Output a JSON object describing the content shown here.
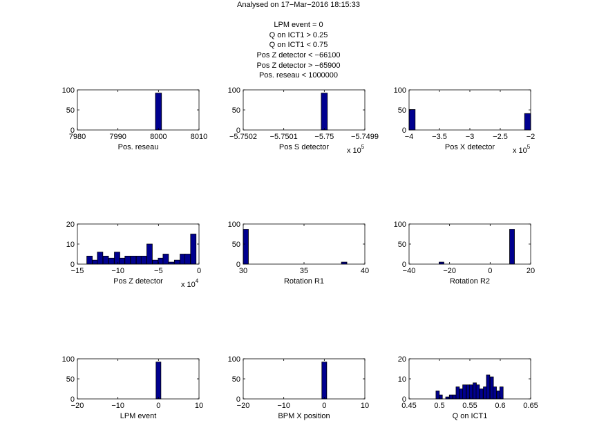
{
  "figure": {
    "title_line": "Analysed on 17−Mar−2016 18:15:33",
    "cut_lines": [
      "LPM event = 0",
      "Q on ICT1 > 0.25",
      "Q on ICT1 < 0.75",
      "Pos Z detector < −66100",
      "Pos Z detector > −65900",
      "Pos. reseau < 1000000"
    ]
  },
  "colors": {
    "bar_fill": "#00008f",
    "bar_edge": "#000000",
    "axes": "#000000"
  },
  "chart_data": [
    {
      "type": "bar",
      "xlabel": "Pos. reseau",
      "xlim": [
        7980,
        8010
      ],
      "xticks": [
        "7980",
        "7990",
        "8000",
        "8010"
      ],
      "ylim": [
        0,
        100
      ],
      "yticks": [
        "0",
        "50",
        "100"
      ],
      "bin_width": 1.5,
      "bars": [
        {
          "x": 8000,
          "y": 92
        }
      ]
    },
    {
      "type": "bar",
      "xlabel": "Pos S detector",
      "xlim": [
        -5.7502,
        -5.7499
      ],
      "xticks": [
        "−5.7502",
        "−5.7501",
        "−5.75",
        "−5.7499"
      ],
      "exponent": "5",
      "ylim": [
        0,
        100
      ],
      "yticks": [
        "0",
        "50",
        "100"
      ],
      "bin_width": 1.5e-05,
      "bars": [
        {
          "x": -5.75,
          "y": 92
        }
      ]
    },
    {
      "type": "bar",
      "xlabel": "Pos X detector",
      "xlim": [
        -4,
        -2
      ],
      "xticks": [
        "−4",
        "−3.5",
        "−3",
        "−2.5",
        "−2"
      ],
      "exponent": "5",
      "ylim": [
        0,
        100
      ],
      "yticks": [
        "0",
        "50",
        "100"
      ],
      "bin_width": 0.1,
      "bars": [
        {
          "x": -3.95,
          "y": 51
        },
        {
          "x": -2.05,
          "y": 41
        }
      ]
    },
    {
      "type": "bar",
      "xlabel": "Pos Z detector",
      "xlim": [
        -15,
        0
      ],
      "xticks": [
        "−15",
        "−10",
        "−5",
        "0"
      ],
      "exponent": "4",
      "ylim": [
        0,
        20
      ],
      "yticks": [
        "0",
        "10",
        "20"
      ],
      "bin_width": 0.675,
      "bars": [
        {
          "x": -13.5,
          "y": 4
        },
        {
          "x": -12.8,
          "y": 2
        },
        {
          "x": -12.2,
          "y": 6
        },
        {
          "x": -11.5,
          "y": 4
        },
        {
          "x": -10.8,
          "y": 3
        },
        {
          "x": -10.1,
          "y": 6
        },
        {
          "x": -9.5,
          "y": 3
        },
        {
          "x": -8.8,
          "y": 4
        },
        {
          "x": -8.1,
          "y": 4
        },
        {
          "x": -7.4,
          "y": 4
        },
        {
          "x": -6.8,
          "y": 4
        },
        {
          "x": -6.1,
          "y": 10
        },
        {
          "x": -5.4,
          "y": 2
        },
        {
          "x": -4.7,
          "y": 3
        },
        {
          "x": -4.1,
          "y": 5
        },
        {
          "x": -3.4,
          "y": 1
        },
        {
          "x": -2.7,
          "y": 2
        },
        {
          "x": -2.0,
          "y": 5
        },
        {
          "x": -1.4,
          "y": 5
        },
        {
          "x": -0.7,
          "y": 15
        }
      ]
    },
    {
      "type": "bar",
      "xlabel": "Rotation R1",
      "xlim": [
        30,
        40
      ],
      "xticks": [
        "30",
        "35",
        "40"
      ],
      "ylim": [
        0,
        100
      ],
      "yticks": [
        "0",
        "50",
        "100"
      ],
      "bin_width": 0.45,
      "bars": [
        {
          "x": 30.2,
          "y": 87
        },
        {
          "x": 38.3,
          "y": 5
        }
      ]
    },
    {
      "type": "bar",
      "xlabel": "Rotation R2",
      "xlim": [
        -40,
        20
      ],
      "xticks": [
        "−40",
        "−20",
        "0",
        "20"
      ],
      "ylim": [
        0,
        100
      ],
      "yticks": [
        "0",
        "50",
        "100"
      ],
      "bin_width": 2.4,
      "bars": [
        {
          "x": -24,
          "y": 5
        },
        {
          "x": 10.8,
          "y": 87
        }
      ]
    },
    {
      "type": "bar",
      "xlabel": "LPM event",
      "xlim": [
        -20,
        10
      ],
      "xticks": [
        "−20",
        "−10",
        "0",
        "10"
      ],
      "ylim": [
        0,
        100
      ],
      "yticks": [
        "0",
        "50",
        "100"
      ],
      "bin_width": 1.2,
      "bars": [
        {
          "x": 0,
          "y": 92
        }
      ]
    },
    {
      "type": "bar",
      "xlabel": "BPM X position",
      "xlim": [
        -20,
        10
      ],
      "xticks": [
        "−20",
        "−10",
        "0",
        "10"
      ],
      "ylim": [
        0,
        100
      ],
      "yticks": [
        "0",
        "50",
        "100"
      ],
      "bin_width": 1.2,
      "bars": [
        {
          "x": 0,
          "y": 92
        }
      ]
    },
    {
      "type": "bar",
      "xlabel": "Q on ICT1",
      "xlim": [
        0.45,
        0.65
      ],
      "xticks": [
        "0.45",
        "0.5",
        "0.55",
        "0.6",
        "0.65"
      ],
      "ylim": [
        0,
        20
      ],
      "yticks": [
        "0",
        "10",
        "20"
      ],
      "bin_width": 0.0055,
      "bars": [
        {
          "x": 0.497,
          "y": 4
        },
        {
          "x": 0.502,
          "y": 2
        },
        {
          "x": 0.513,
          "y": 1
        },
        {
          "x": 0.519,
          "y": 2
        },
        {
          "x": 0.525,
          "y": 2
        },
        {
          "x": 0.53,
          "y": 6
        },
        {
          "x": 0.536,
          "y": 5
        },
        {
          "x": 0.541,
          "y": 7
        },
        {
          "x": 0.547,
          "y": 7
        },
        {
          "x": 0.552,
          "y": 7
        },
        {
          "x": 0.558,
          "y": 8
        },
        {
          "x": 0.563,
          "y": 7
        },
        {
          "x": 0.569,
          "y": 5
        },
        {
          "x": 0.575,
          "y": 6
        },
        {
          "x": 0.58,
          "y": 12
        },
        {
          "x": 0.586,
          "y": 11
        },
        {
          "x": 0.591,
          "y": 6
        },
        {
          "x": 0.597,
          "y": 4
        },
        {
          "x": 0.602,
          "y": 6
        }
      ]
    }
  ]
}
